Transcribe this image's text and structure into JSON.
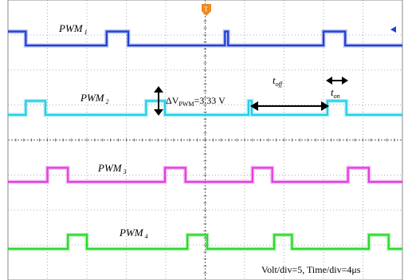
{
  "chart_data": {
    "type": "line",
    "title": "",
    "xlabel": "",
    "ylabel": "",
    "time_per_div_us": 4,
    "volt_per_div": 5,
    "x_divisions": 10,
    "y_divisions": 8,
    "grid": true,
    "series": [
      {
        "name": "PWM",
        "subscript": "1",
        "color": "#1f3fd6",
        "high_level_div": 0.0,
        "pulse_amplitude_div": 0.8,
        "x": [
          0,
          0.45,
          0.45,
          2.5,
          2.5,
          3.05,
          3.05,
          5.5,
          5.5,
          5.58,
          5.58,
          8.0,
          8.0,
          8.55,
          8.55,
          10
        ],
        "y": [
          1,
          1,
          0,
          0,
          1,
          1,
          0,
          0,
          1,
          1,
          0,
          0,
          1,
          1,
          0,
          0
        ]
      },
      {
        "name": "PWM",
        "subscript": "2",
        "color": "#22cfe6",
        "pulse_amplitude_div": 0.8,
        "x": [
          0,
          0.45,
          0.45,
          0.95,
          0.95,
          3.5,
          3.5,
          3.98,
          3.98,
          6.1,
          6.1,
          6.18,
          6.18,
          8.1,
          8.1,
          8.58,
          8.58,
          10
        ],
        "y": [
          0,
          0,
          1,
          1,
          0,
          0,
          1,
          1,
          0,
          0,
          1,
          1,
          0,
          0,
          1,
          1,
          0,
          0
        ]
      },
      {
        "name": "PWM",
        "subscript": "3",
        "color": "#e23ee0",
        "pulse_amplitude_div": 0.8,
        "x": [
          0,
          1.0,
          1.0,
          1.52,
          1.52,
          3.98,
          3.98,
          4.5,
          4.5,
          6.2,
          6.2,
          6.7,
          6.7,
          8.62,
          8.62,
          9.15,
          9.15,
          10
        ],
        "y": [
          0,
          0,
          1,
          1,
          0,
          0,
          1,
          1,
          0,
          0,
          1,
          1,
          0,
          0,
          1,
          1,
          0,
          0
        ]
      },
      {
        "name": "PWM",
        "subscript": "4",
        "color": "#2fd62f",
        "pulse_amplitude_div": 0.8,
        "x": [
          0,
          1.52,
          1.52,
          2.0,
          2.0,
          4.55,
          4.55,
          5.05,
          5.05,
          6.75,
          6.75,
          7.2,
          7.2,
          9.15,
          9.15,
          9.65,
          9.65,
          10
        ],
        "y": [
          0,
          0,
          1,
          1,
          0,
          0,
          1,
          1,
          0,
          0,
          1,
          1,
          0,
          0,
          1,
          1,
          0,
          0
        ]
      }
    ],
    "annotations": {
      "delta_v": "ΔV",
      "delta_v_sub": "PWM",
      "delta_v_value": "=3.33 V",
      "t_off": "t",
      "t_off_sub": "off",
      "t_on": "t",
      "t_on_sub": "on",
      "footer": "Volt/div=5, Time/div=4μs"
    },
    "trigger_marker": "T"
  }
}
